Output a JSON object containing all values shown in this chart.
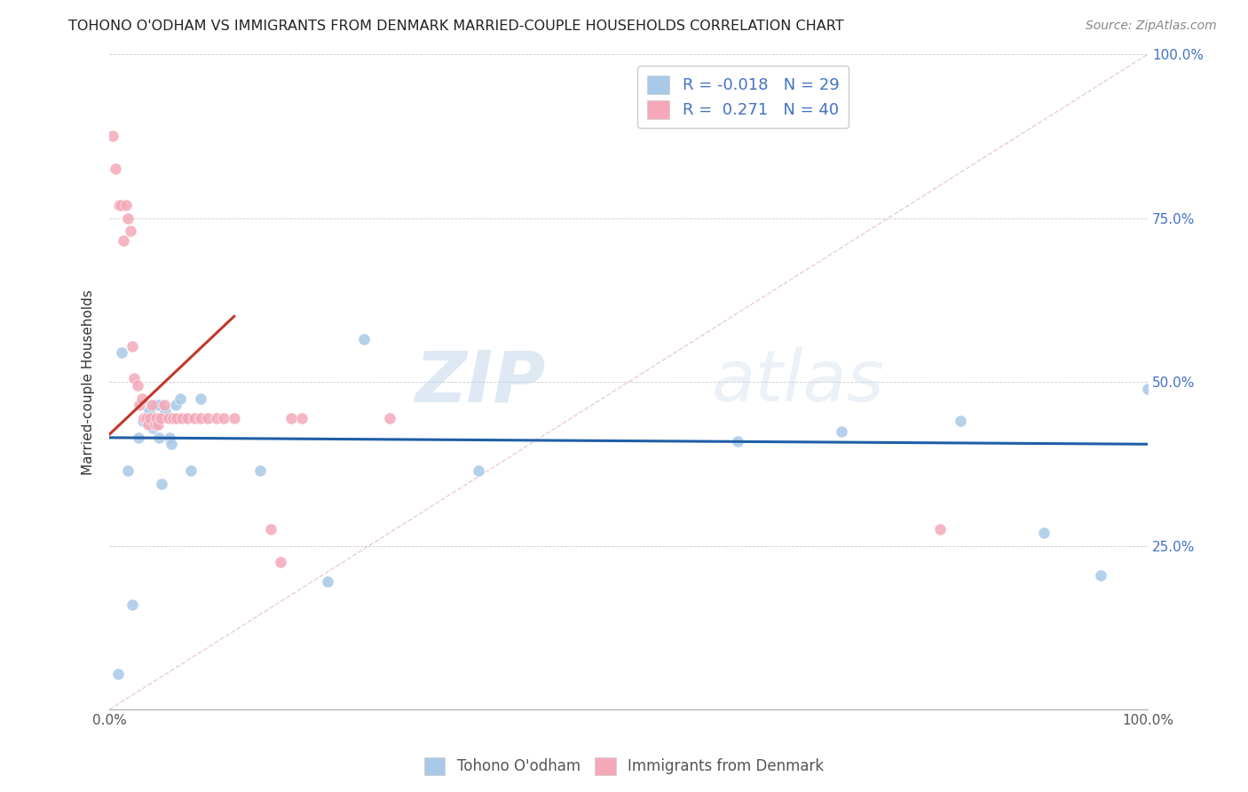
{
  "title": "TOHONO O'ODHAM VS IMMIGRANTS FROM DENMARK MARRIED-COUPLE HOUSEHOLDS CORRELATION CHART",
  "source": "Source: ZipAtlas.com",
  "ylabel": "Married-couple Households",
  "xlim": [
    0,
    1.0
  ],
  "ylim": [
    0,
    1.0
  ],
  "x_ticks": [
    0,
    0.125,
    0.25,
    0.375,
    0.5,
    0.625,
    0.75,
    0.875,
    1.0
  ],
  "y_ticks": [
    0,
    0.25,
    0.5,
    0.75,
    1.0
  ],
  "x_tick_labels": [
    "0.0%",
    "",
    "",
    "",
    "",
    "",
    "",
    "",
    "100.0%"
  ],
  "y_tick_labels": [
    "",
    "25.0%",
    "50.0%",
    "75.0%",
    "100.0%"
  ],
  "legend_label1": "Tohono O'odham",
  "legend_label2": "Immigrants from Denmark",
  "r1": "-0.018",
  "n1": "29",
  "r2": "0.271",
  "n2": "40",
  "color1": "#a8c8e8",
  "color2": "#f4a8b8",
  "trendline1_color": "#1f5fa6",
  "trendline2_color": "#c0392b",
  "diagonal_color": "#cccccc",
  "watermark_zip": "ZIP",
  "watermark_atlas": "atlas",
  "blue_scatter_x": [
    0.008,
    0.018,
    0.022,
    0.028,
    0.032,
    0.038,
    0.042,
    0.044,
    0.048,
    0.048,
    0.05,
    0.054,
    0.058,
    0.06,
    0.064,
    0.068,
    0.078,
    0.088,
    0.145,
    0.21,
    0.245,
    0.355,
    0.605,
    0.705,
    0.82,
    0.9,
    0.955,
    1.0,
    0.012
  ],
  "blue_scatter_y": [
    0.055,
    0.365,
    0.16,
    0.415,
    0.44,
    0.455,
    0.43,
    0.465,
    0.465,
    0.415,
    0.345,
    0.455,
    0.415,
    0.405,
    0.465,
    0.475,
    0.365,
    0.475,
    0.365,
    0.195,
    0.565,
    0.365,
    0.41,
    0.425,
    0.44,
    0.27,
    0.205,
    0.49,
    0.545
  ],
  "pink_scatter_x": [
    0.003,
    0.006,
    0.009,
    0.011,
    0.013,
    0.016,
    0.018,
    0.02,
    0.022,
    0.024,
    0.027,
    0.029,
    0.031,
    0.033,
    0.036,
    0.037,
    0.039,
    0.041,
    0.044,
    0.045,
    0.047,
    0.049,
    0.053,
    0.057,
    0.061,
    0.065,
    0.07,
    0.075,
    0.082,
    0.088,
    0.095,
    0.103,
    0.11,
    0.12,
    0.155,
    0.165,
    0.175,
    0.185,
    0.27,
    0.8
  ],
  "pink_scatter_y": [
    0.875,
    0.825,
    0.77,
    0.77,
    0.715,
    0.77,
    0.75,
    0.73,
    0.555,
    0.505,
    0.495,
    0.465,
    0.475,
    0.445,
    0.445,
    0.435,
    0.445,
    0.465,
    0.435,
    0.445,
    0.435,
    0.445,
    0.465,
    0.445,
    0.445,
    0.445,
    0.445,
    0.445,
    0.445,
    0.445,
    0.445,
    0.445,
    0.445,
    0.445,
    0.275,
    0.225,
    0.445,
    0.445,
    0.445,
    0.275
  ]
}
